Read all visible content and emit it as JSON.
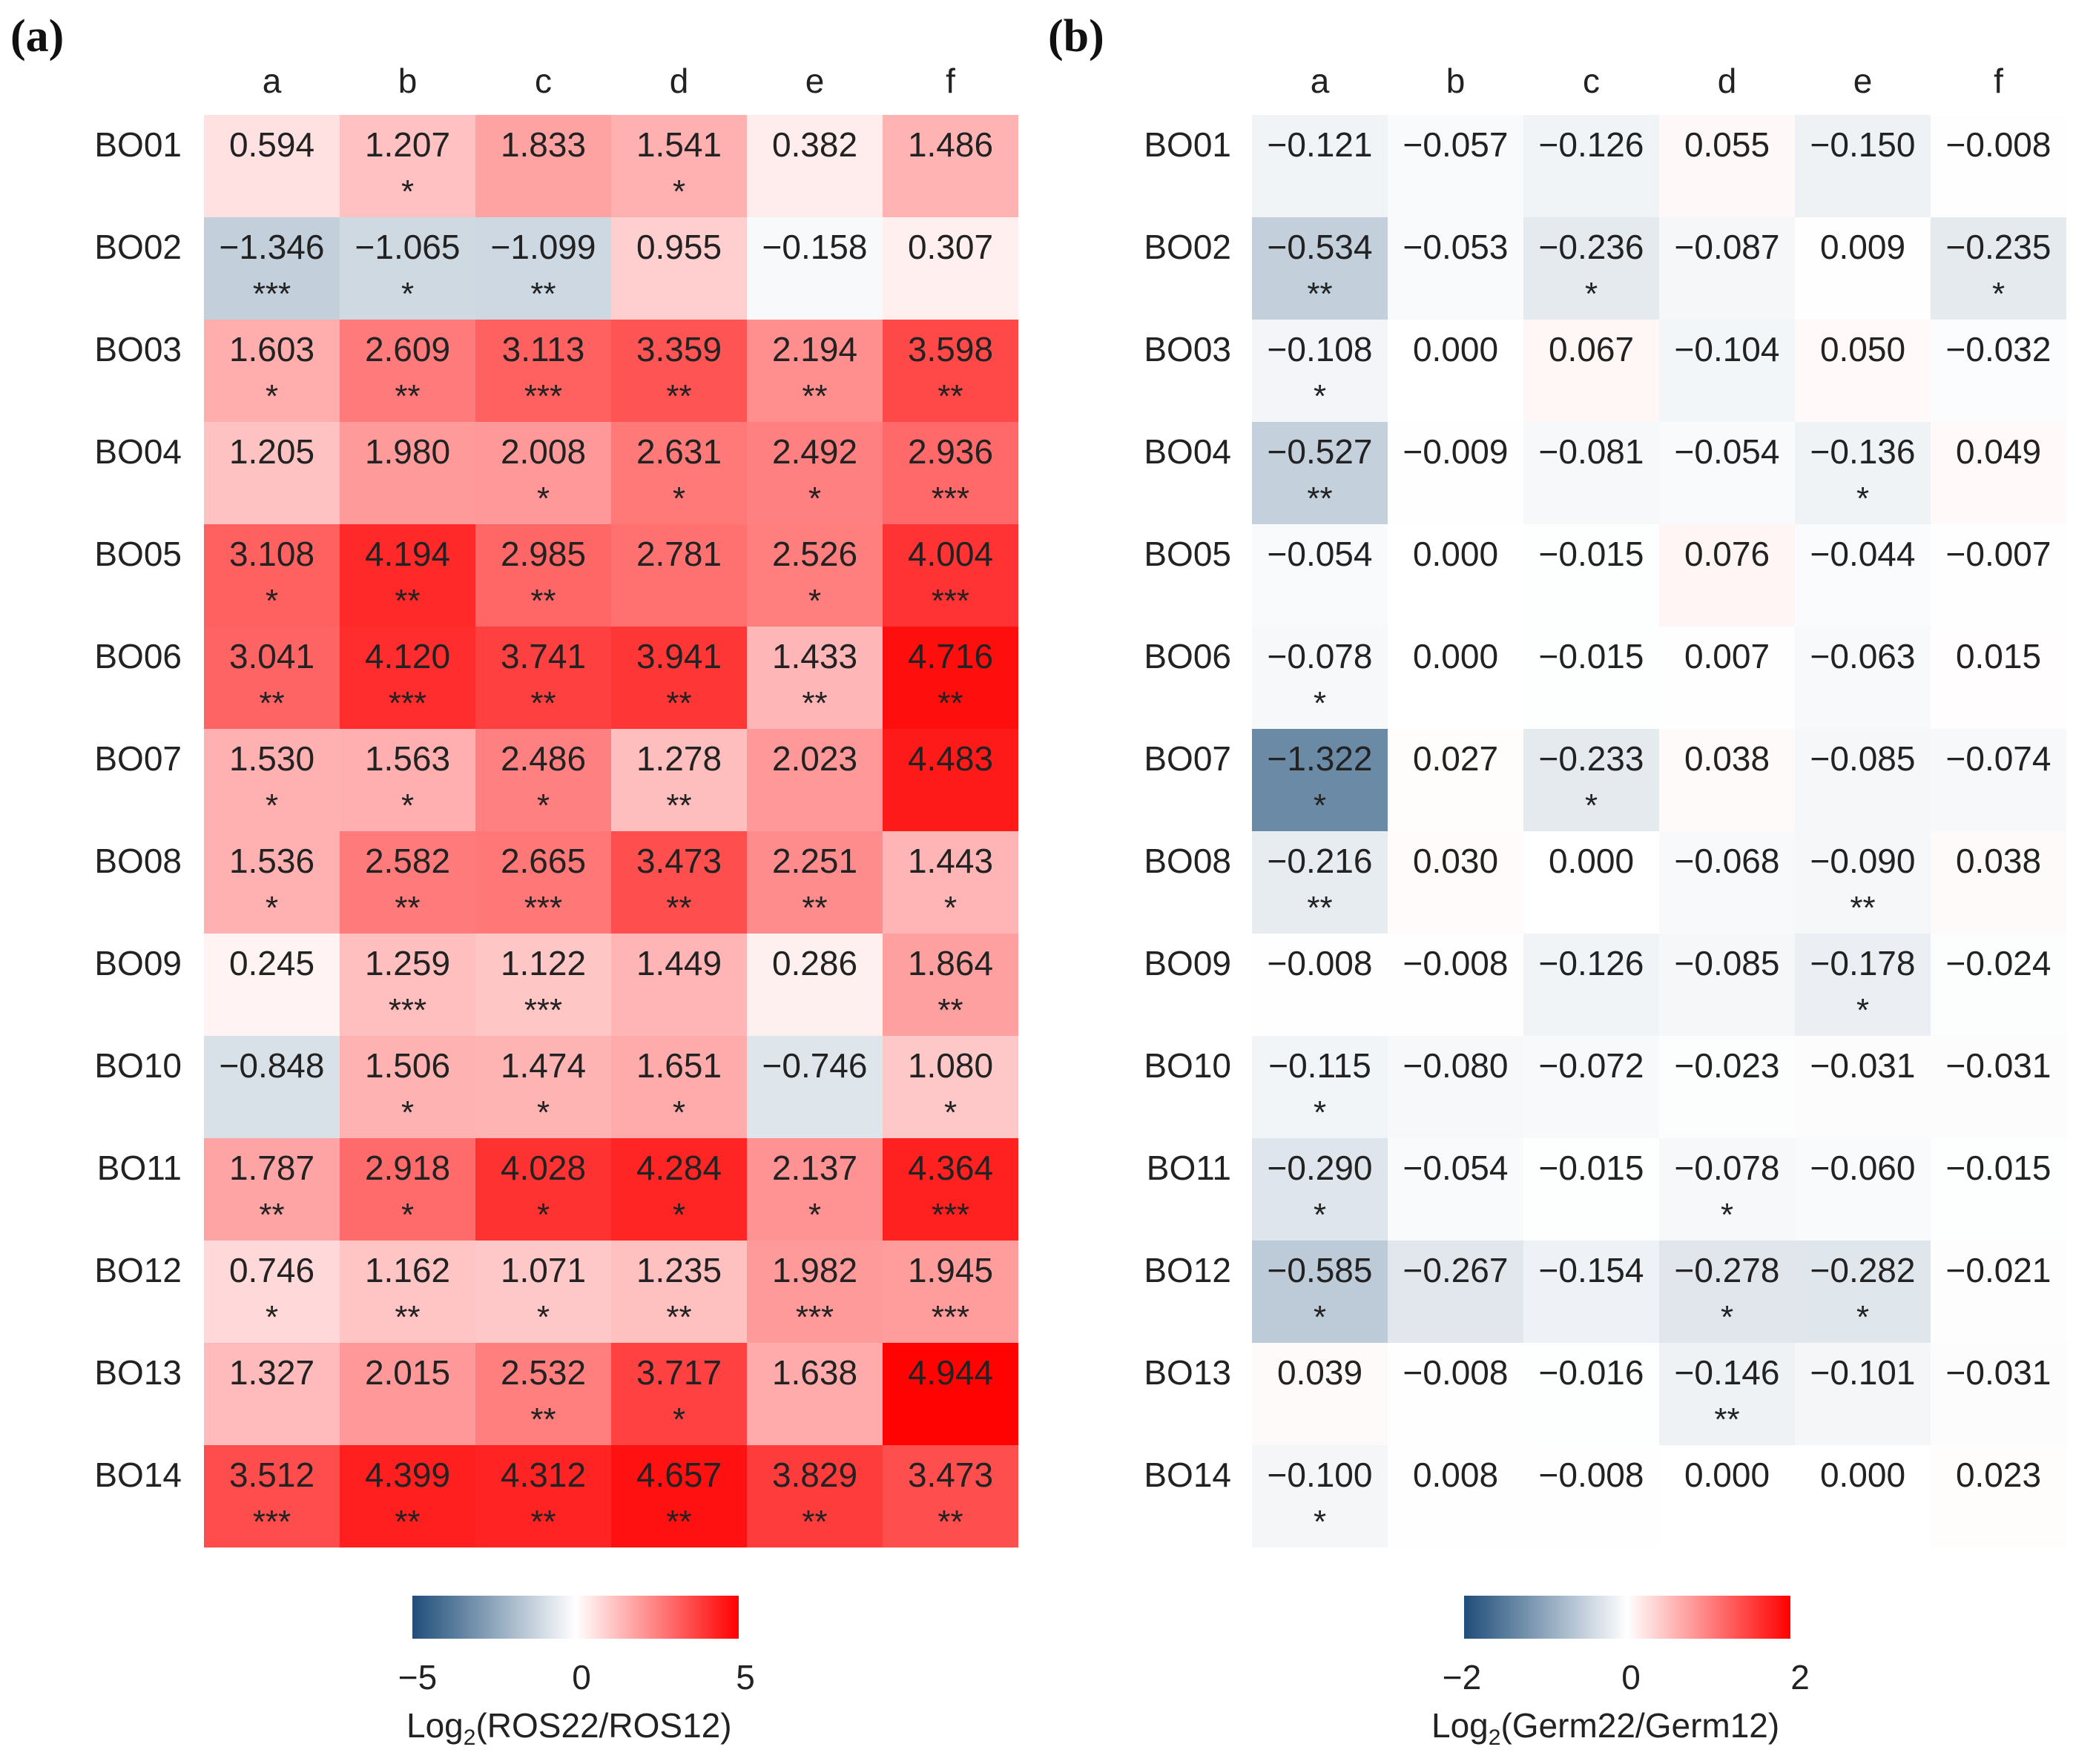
{
  "panel_labels": {
    "a": "(a)",
    "b": "(b)"
  },
  "chart_data": [
    {
      "type": "heatmap",
      "panel": "(a)",
      "columns": [
        "a",
        "b",
        "c",
        "d",
        "e",
        "f"
      ],
      "rows": [
        "BO01",
        "BO02",
        "BO03",
        "BO04",
        "BO05",
        "BO06",
        "BO07",
        "BO08",
        "BO09",
        "BO10",
        "BO11",
        "BO12",
        "BO13",
        "BO14"
      ],
      "values": [
        [
          0.594,
          1.207,
          1.833,
          1.541,
          0.382,
          1.486
        ],
        [
          -1.346,
          -1.065,
          -1.099,
          0.955,
          -0.158,
          0.307
        ],
        [
          1.603,
          2.609,
          3.113,
          3.359,
          2.194,
          3.598
        ],
        [
          1.205,
          1.98,
          2.008,
          2.631,
          2.492,
          2.936
        ],
        [
          3.108,
          4.194,
          2.985,
          2.781,
          2.526,
          4.004
        ],
        [
          3.041,
          4.12,
          3.741,
          3.941,
          1.433,
          4.716
        ],
        [
          1.53,
          1.563,
          2.486,
          1.278,
          2.023,
          4.483
        ],
        [
          1.536,
          2.582,
          2.665,
          3.473,
          2.251,
          1.443
        ],
        [
          0.245,
          1.259,
          1.122,
          1.449,
          0.286,
          1.864
        ],
        [
          -0.848,
          1.506,
          1.474,
          1.651,
          -0.746,
          1.08
        ],
        [
          1.787,
          2.918,
          4.028,
          4.284,
          2.137,
          4.364
        ],
        [
          0.746,
          1.162,
          1.071,
          1.235,
          1.982,
          1.945
        ],
        [
          1.327,
          2.015,
          2.532,
          3.717,
          1.638,
          4.944
        ],
        [
          3.512,
          4.399,
          4.312,
          4.657,
          3.829,
          3.473
        ]
      ],
      "labels": [
        [
          "0.594",
          "1.207",
          "1.833",
          "1.541",
          "0.382",
          "1.486"
        ],
        [
          "−1.346",
          "−1.065",
          "−1.099",
          "0.955",
          "−0.158",
          "0.307"
        ],
        [
          "1.603",
          "2.609",
          "3.113",
          "3.359",
          "2.194",
          "3.598"
        ],
        [
          "1.205",
          "1.980",
          "2.008",
          "2.631",
          "2.492",
          "2.936"
        ],
        [
          "3.108",
          "4.194",
          "2.985",
          "2.781",
          "2.526",
          "4.004"
        ],
        [
          "3.041",
          "4.120",
          "3.741",
          "3.941",
          "1.433",
          "4.716"
        ],
        [
          "1.530",
          "1.563",
          "2.486",
          "1.278",
          "2.023",
          "4.483"
        ],
        [
          "1.536",
          "2.582",
          "2.665",
          "3.473",
          "2.251",
          "1.443"
        ],
        [
          "0.245",
          "1.259",
          "1.122",
          "1.449",
          "0.286",
          "1.864"
        ],
        [
          "−0.848",
          "1.506",
          "1.474",
          "1.651",
          "−0.746",
          "1.080"
        ],
        [
          "1.787",
          "2.918",
          "4.028",
          "4.284",
          "2.137",
          "4.364"
        ],
        [
          "0.746",
          "1.162",
          "1.071",
          "1.235",
          "1.982",
          "1.945"
        ],
        [
          "1.327",
          "2.015",
          "2.532",
          "3.717",
          "1.638",
          "4.944"
        ],
        [
          "3.512",
          "4.399",
          "4.312",
          "4.657",
          "3.829",
          "3.473"
        ]
      ],
      "significance": [
        [
          "",
          "*",
          "",
          "*",
          "",
          ""
        ],
        [
          "***",
          "*",
          "**",
          "",
          "",
          ""
        ],
        [
          "*",
          "**",
          "***",
          "**",
          "**",
          "**"
        ],
        [
          "",
          "",
          "*",
          "*",
          "*",
          "***"
        ],
        [
          "*",
          "**",
          "**",
          "",
          "*",
          "***"
        ],
        [
          "**",
          "***",
          "**",
          "**",
          "**",
          "**"
        ],
        [
          "*",
          "*",
          "*",
          "**",
          "",
          ""
        ],
        [
          "*",
          "**",
          "***",
          "**",
          "**",
          "*"
        ],
        [
          "",
          "***",
          "***",
          "",
          "",
          "**"
        ],
        [
          "",
          "*",
          "*",
          "*",
          "",
          "*"
        ],
        [
          "**",
          "*",
          "*",
          "*",
          "*",
          "***"
        ],
        [
          "*",
          "**",
          "*",
          "**",
          "***",
          "***"
        ],
        [
          "",
          "",
          "**",
          "*",
          "",
          ""
        ],
        [
          "***",
          "**",
          "**",
          "**",
          "**",
          "**"
        ]
      ],
      "color_scale": {
        "min": -5,
        "max": 5,
        "low": "#1f4e79",
        "mid": "#ffffff",
        "high": "#ff0000"
      },
      "colorbar_ticks": [
        "−5",
        "0",
        "5"
      ],
      "colorbar_label": {
        "prefix": "Log",
        "sub": "2",
        "suffix": "(ROS22/ROS12)"
      }
    },
    {
      "type": "heatmap",
      "panel": "(b)",
      "columns": [
        "a",
        "b",
        "c",
        "d",
        "e",
        "f"
      ],
      "rows": [
        "BO01",
        "BO02",
        "BO03",
        "BO04",
        "BO05",
        "BO06",
        "BO07",
        "BO08",
        "BO09",
        "BO10",
        "BO11",
        "BO12",
        "BO13",
        "BO14"
      ],
      "values": [
        [
          -0.121,
          -0.057,
          -0.126,
          0.055,
          -0.15,
          -0.008
        ],
        [
          -0.534,
          -0.053,
          -0.236,
          -0.087,
          0.009,
          -0.235
        ],
        [
          -0.108,
          0.0,
          0.067,
          -0.104,
          0.05,
          -0.032
        ],
        [
          -0.527,
          -0.009,
          -0.081,
          -0.054,
          -0.136,
          0.049
        ],
        [
          -0.054,
          0.0,
          -0.015,
          0.076,
          -0.044,
          -0.007
        ],
        [
          -0.078,
          0.0,
          -0.015,
          0.007,
          -0.063,
          0.015
        ],
        [
          -1.322,
          0.027,
          -0.233,
          0.038,
          -0.085,
          -0.074
        ],
        [
          -0.216,
          0.03,
          0.0,
          -0.068,
          -0.09,
          0.038
        ],
        [
          -0.008,
          -0.008,
          -0.126,
          -0.085,
          -0.178,
          -0.024
        ],
        [
          -0.115,
          -0.08,
          -0.072,
          -0.023,
          -0.031,
          -0.031
        ],
        [
          -0.29,
          -0.054,
          -0.015,
          -0.078,
          -0.06,
          -0.015
        ],
        [
          -0.585,
          -0.267,
          -0.154,
          -0.278,
          -0.282,
          -0.021
        ],
        [
          0.039,
          -0.008,
          -0.016,
          -0.146,
          -0.101,
          -0.031
        ],
        [
          -0.1,
          0.008,
          -0.008,
          0.0,
          0.0,
          0.023
        ]
      ],
      "labels": [
        [
          "−0.121",
          "−0.057",
          "−0.126",
          "0.055",
          "−0.150",
          "−0.008"
        ],
        [
          "−0.534",
          "−0.053",
          "−0.236",
          "−0.087",
          "0.009",
          "−0.235"
        ],
        [
          "−0.108",
          "0.000",
          "0.067",
          "−0.104",
          "0.050",
          "−0.032"
        ],
        [
          "−0.527",
          "−0.009",
          "−0.081",
          "−0.054",
          "−0.136",
          "0.049"
        ],
        [
          "−0.054",
          "0.000",
          "−0.015",
          "0.076",
          "−0.044",
          "−0.007"
        ],
        [
          "−0.078",
          "0.000",
          "−0.015",
          "0.007",
          "−0.063",
          "0.015"
        ],
        [
          "−1.322",
          "0.027",
          "−0.233",
          "0.038",
          "−0.085",
          "−0.074"
        ],
        [
          "−0.216",
          "0.030",
          "0.000",
          "−0.068",
          "−0.090",
          "0.038"
        ],
        [
          "−0.008",
          "−0.008",
          "−0.126",
          "−0.085",
          "−0.178",
          "−0.024"
        ],
        [
          "−0.115",
          "−0.080",
          "−0.072",
          "−0.023",
          "−0.031",
          "−0.031"
        ],
        [
          "−0.290",
          "−0.054",
          "−0.015",
          "−0.078",
          "−0.060",
          "−0.015"
        ],
        [
          "−0.585",
          "−0.267",
          "−0.154",
          "−0.278",
          "−0.282",
          "−0.021"
        ],
        [
          "0.039",
          "−0.008",
          "−0.016",
          "−0.146",
          "−0.101",
          "−0.031"
        ],
        [
          "−0.100",
          "0.008",
          "−0.008",
          "0.000",
          "0.000",
          "0.023"
        ]
      ],
      "significance": [
        [
          "",
          "",
          "",
          "",
          "",
          ""
        ],
        [
          "**",
          "",
          "*",
          "",
          "",
          "*"
        ],
        [
          "*",
          "",
          "",
          "",
          "",
          ""
        ],
        [
          "**",
          "",
          "",
          "",
          "*",
          ""
        ],
        [
          "",
          "",
          "",
          "",
          "",
          ""
        ],
        [
          "*",
          "",
          "",
          "",
          "",
          ""
        ],
        [
          "*",
          "",
          "*",
          "",
          "",
          ""
        ],
        [
          "**",
          "",
          "",
          "",
          "**",
          ""
        ],
        [
          "",
          "",
          "",
          "",
          "*",
          ""
        ],
        [
          "*",
          "",
          "",
          "",
          "",
          ""
        ],
        [
          "*",
          "",
          "",
          "*",
          "",
          ""
        ],
        [
          "*",
          "",
          "",
          "*",
          "*",
          ""
        ],
        [
          "",
          "",
          "",
          "**",
          "",
          ""
        ],
        [
          "*",
          "",
          "",
          "",
          "",
          ""
        ]
      ],
      "color_scale": {
        "min": -2,
        "max": 2,
        "low": "#1f4e79",
        "mid": "#ffffff",
        "high": "#ff0000"
      },
      "colorbar_ticks": [
        "−2",
        "0",
        "2"
      ],
      "colorbar_label": {
        "prefix": "Log",
        "sub": "2",
        "suffix": "(Germ22/Germ12)"
      }
    }
  ]
}
